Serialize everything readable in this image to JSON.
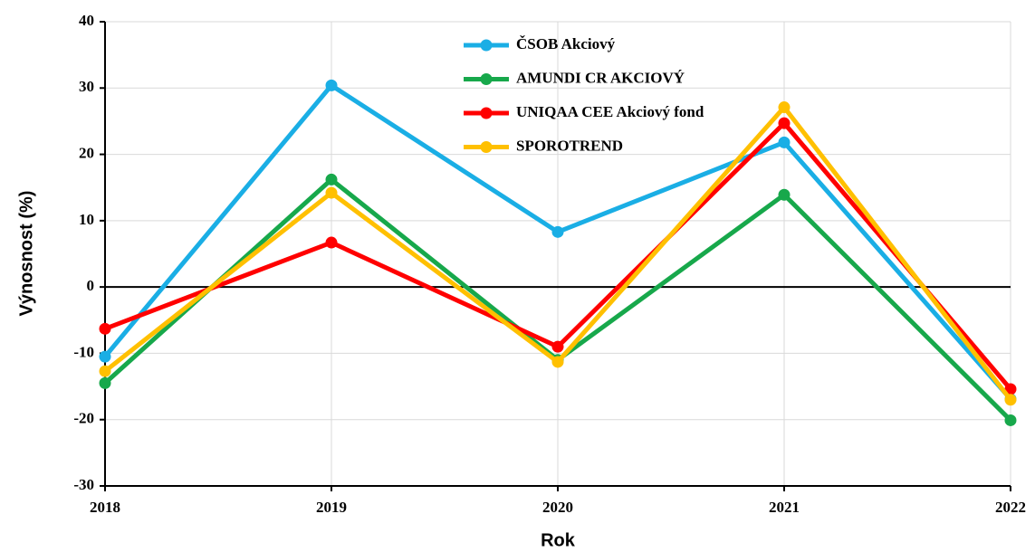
{
  "chart_data": {
    "type": "line",
    "x_label": "Rok",
    "y_label": "Výnosnost (%)",
    "x": [
      2018,
      2019,
      2020,
      2021,
      2022
    ],
    "xlim": [
      2018,
      2022
    ],
    "xticks": [
      2018,
      2019,
      2020,
      2021,
      2022
    ],
    "ylim": [
      -30,
      40
    ],
    "yticks": [
      -30,
      -20,
      -10,
      0,
      10,
      20,
      30,
      40
    ],
    "grid": true,
    "legend": "top",
    "series": [
      {
        "name": "ČSOB Akciový",
        "color": "#1aaee5",
        "values": [
          -10.5,
          30.4,
          8.3,
          21.8,
          -16.9
        ]
      },
      {
        "name": "AMUNDI CR AKCIOVÝ",
        "color": "#17a84b",
        "values": [
          -14.5,
          16.2,
          -11,
          13.9,
          -20.1
        ]
      },
      {
        "name": "UNIQAA CEE Akciový fond",
        "color": "#ff0000",
        "values": [
          -6.3,
          6.7,
          -9,
          24.7,
          -15.4
        ]
      },
      {
        "name": "SPOROTREND",
        "color": "#ffc000",
        "values": [
          -12.7,
          14.2,
          -11.3,
          27.1,
          -17
        ]
      }
    ]
  }
}
